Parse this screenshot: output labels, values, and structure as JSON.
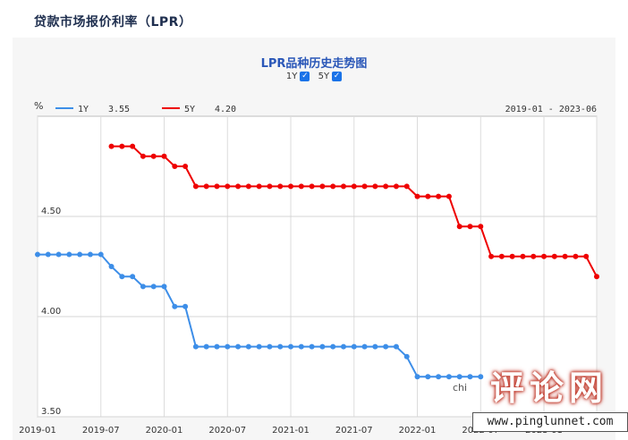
{
  "page": {
    "title": "贷款市场报价利率（LPR）"
  },
  "toggles": [
    {
      "label": "1Y",
      "checked": true
    },
    {
      "label": "5Y",
      "checked": true
    }
  ],
  "watermark": {
    "text": "评论网",
    "url": "www.pinglunnet.com"
  },
  "chart_data": {
    "type": "line",
    "title": "LPR品种历史走势图",
    "ylabel": "%",
    "ylim": [
      3.5,
      5.0
    ],
    "yticks": [
      3.5,
      4.0,
      4.5
    ],
    "ytick_labels": [
      "3.50",
      "4.00",
      "4.50"
    ],
    "xlim": [
      "2019-01",
      "2023-06"
    ],
    "xtick_labels": [
      "2019-01",
      "2019-07",
      "2020-01",
      "2020-07",
      "2021-01",
      "2021-07",
      "2022-01",
      "2022-07",
      "2023-01"
    ],
    "date_range": "2019-01 - 2023-06",
    "grid": true,
    "legend_position": "top-left",
    "overlay_text": "chi",
    "series": [
      {
        "name": "1Y",
        "latest": "3.55",
        "color": "#3d8ee8",
        "x": [
          "2019-01",
          "2019-02",
          "2019-03",
          "2019-04",
          "2019-05",
          "2019-06",
          "2019-07",
          "2019-08",
          "2019-09",
          "2019-10",
          "2019-11",
          "2019-12",
          "2020-01",
          "2020-02",
          "2020-03",
          "2020-04",
          "2020-05",
          "2020-06",
          "2020-07",
          "2020-08",
          "2020-09",
          "2020-10",
          "2020-11",
          "2020-12",
          "2021-01",
          "2021-02",
          "2021-03",
          "2021-04",
          "2021-05",
          "2021-06",
          "2021-07",
          "2021-08",
          "2021-09",
          "2021-10",
          "2021-11",
          "2021-12",
          "2022-01",
          "2022-02",
          "2022-03",
          "2022-04",
          "2022-05",
          "2022-06",
          "2022-07"
        ],
        "values": [
          4.31,
          4.31,
          4.31,
          4.31,
          4.31,
          4.31,
          4.31,
          4.25,
          4.2,
          4.2,
          4.15,
          4.15,
          4.15,
          4.05,
          4.05,
          3.85,
          3.85,
          3.85,
          3.85,
          3.85,
          3.85,
          3.85,
          3.85,
          3.85,
          3.85,
          3.85,
          3.85,
          3.85,
          3.85,
          3.85,
          3.85,
          3.85,
          3.85,
          3.85,
          3.85,
          3.8,
          3.7,
          3.7,
          3.7,
          3.7,
          3.7,
          3.7,
          3.7
        ]
      },
      {
        "name": "5Y",
        "latest": "4.20",
        "color": "#ee0000",
        "x": [
          "2019-08",
          "2019-09",
          "2019-10",
          "2019-11",
          "2019-12",
          "2020-01",
          "2020-02",
          "2020-03",
          "2020-04",
          "2020-05",
          "2020-06",
          "2020-07",
          "2020-08",
          "2020-09",
          "2020-10",
          "2020-11",
          "2020-12",
          "2021-01",
          "2021-02",
          "2021-03",
          "2021-04",
          "2021-05",
          "2021-06",
          "2021-07",
          "2021-08",
          "2021-09",
          "2021-10",
          "2021-11",
          "2021-12",
          "2022-01",
          "2022-02",
          "2022-03",
          "2022-04",
          "2022-05",
          "2022-06",
          "2022-07",
          "2022-08",
          "2022-09",
          "2022-10",
          "2022-11",
          "2022-12",
          "2023-01",
          "2023-02",
          "2023-03",
          "2023-04",
          "2023-05",
          "2023-06"
        ],
        "values": [
          4.85,
          4.85,
          4.85,
          4.8,
          4.8,
          4.8,
          4.75,
          4.75,
          4.65,
          4.65,
          4.65,
          4.65,
          4.65,
          4.65,
          4.65,
          4.65,
          4.65,
          4.65,
          4.65,
          4.65,
          4.65,
          4.65,
          4.65,
          4.65,
          4.65,
          4.65,
          4.65,
          4.65,
          4.65,
          4.6,
          4.6,
          4.6,
          4.6,
          4.45,
          4.45,
          4.45,
          4.3,
          4.3,
          4.3,
          4.3,
          4.3,
          4.3,
          4.3,
          4.3,
          4.3,
          4.3,
          4.2
        ]
      }
    ]
  }
}
